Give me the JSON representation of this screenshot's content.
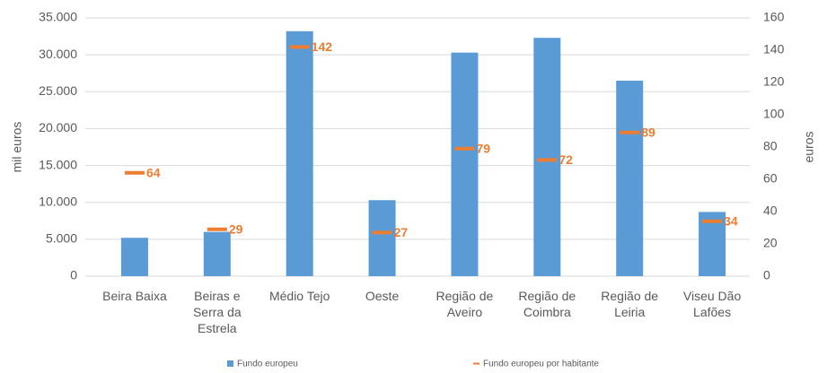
{
  "chart_data": {
    "type": "bar",
    "categories": [
      "Beira Baixa",
      "Beiras e Serra da Estrela",
      "Médio Tejo",
      "Oeste",
      "Região de Aveiro",
      "Região de Coimbra",
      "Região de Leiria",
      "Viseu Dão Lafões"
    ],
    "series": [
      {
        "name": "Fundo europeu",
        "color": "#5b9bd5",
        "type": "bar",
        "values": [
          5200,
          6000,
          33200,
          10300,
          30300,
          32300,
          26500,
          8700
        ]
      },
      {
        "name": "Fundo europeu por habitante",
        "color": "#ed7d31",
        "type": "marker",
        "marker": "dash",
        "axis": "y2",
        "values": [
          64,
          29,
          142,
          27,
          79,
          72,
          89,
          34
        ]
      }
    ],
    "ylabel": "mil euros",
    "y2label": "euros",
    "ylim": [
      0,
      35000
    ],
    "yticks": [
      0,
      {
        "value": 5000,
        "label": "5.000"
      },
      {
        "value": 10000,
        "label": "10.000"
      },
      {
        "value": 15000,
        "label": "15.000"
      },
      {
        "value": 20000,
        "label": "20.000"
      },
      {
        "value": 25000,
        "label": "25.000"
      },
      {
        "value": 30000,
        "label": "30.000"
      },
      {
        "value": 35000,
        "label": "35.000"
      }
    ],
    "y2lim": [
      0,
      160
    ],
    "y2ticks": [
      0,
      20,
      40,
      60,
      80,
      100,
      120,
      140,
      160
    ],
    "grid": true,
    "legend": "bottom"
  }
}
